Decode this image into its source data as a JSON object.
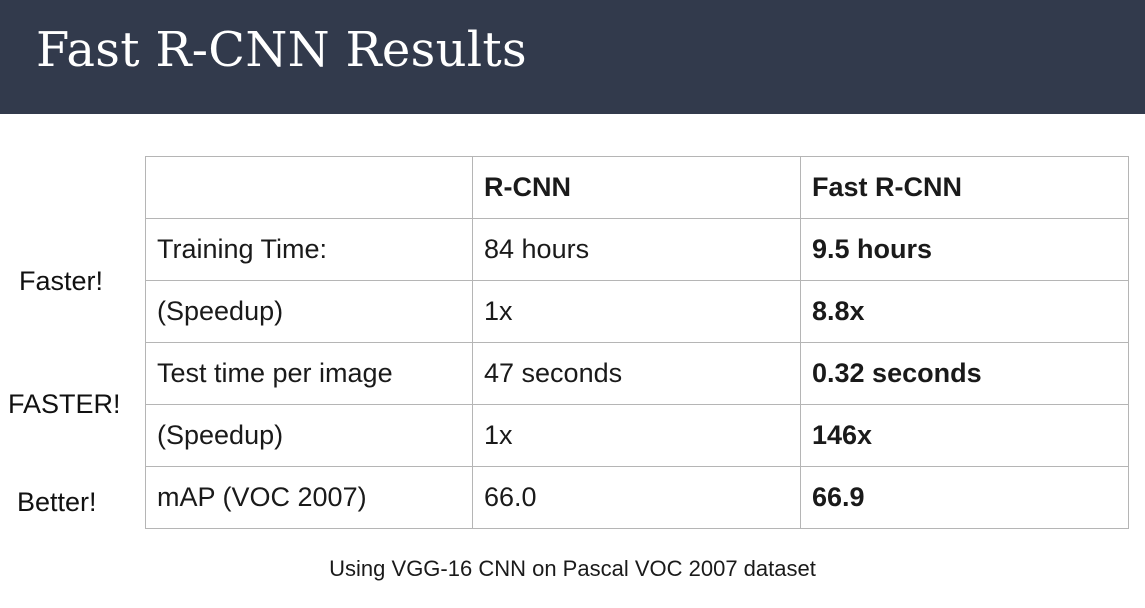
{
  "title": "Fast R-CNN Results",
  "side_labels": [
    "Faster!",
    "FASTER!",
    "Better!"
  ],
  "table": {
    "header": [
      "",
      "R-CNN",
      "Fast R-CNN"
    ],
    "rows": [
      [
        "Training Time:",
        "84 hours",
        "9.5 hours"
      ],
      [
        "(Speedup)",
        "1x",
        "8.8x"
      ],
      [
        "Test time per image",
        "47 seconds",
        "0.32 seconds"
      ],
      [
        "(Speedup)",
        "1x",
        "146x"
      ],
      [
        "mAP (VOC 2007)",
        "66.0",
        "66.9"
      ]
    ]
  },
  "caption": "Using VGG-16 CNN on Pascal VOC 2007 dataset",
  "colors": {
    "header_bg": "#323a4c",
    "title_text": "#ffffff",
    "border": "#b5b5b5"
  }
}
